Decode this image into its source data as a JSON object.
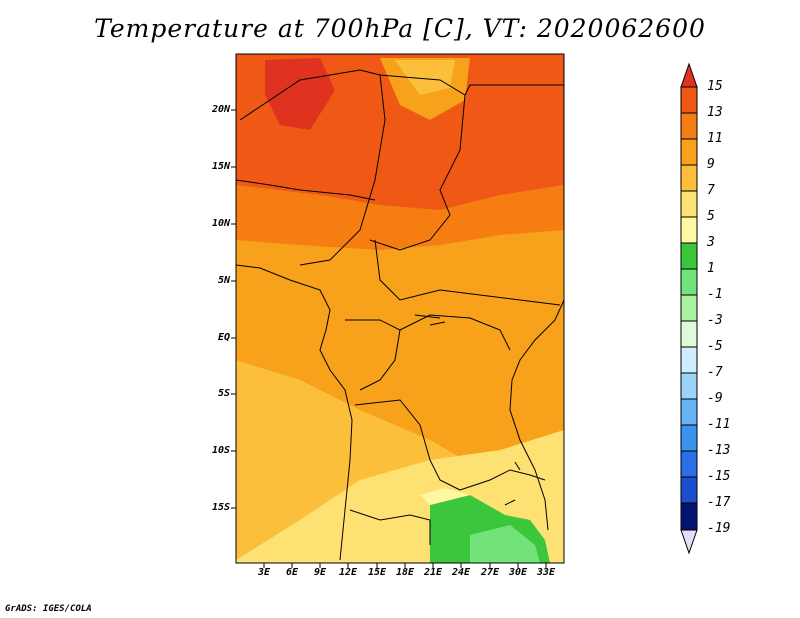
{
  "title": "Temperature at 700hPa [C], VT: 2020062600",
  "credit": "GrADS: IGES/COLA",
  "map": {
    "lat_labels": [
      "20N",
      "15N",
      "10N",
      "5N",
      "EQ",
      "5S",
      "10S",
      "15S"
    ],
    "lon_labels": [
      "3E",
      "6E",
      "9E",
      "12E",
      "15E",
      "18E",
      "21E",
      "24E",
      "27E",
      "30E",
      "33E"
    ]
  },
  "colorbar": {
    "labels": [
      "15",
      "13",
      "11",
      "9",
      "7",
      "5",
      "3",
      "1",
      "-1",
      "-3",
      "-5",
      "-7",
      "-9",
      "-11",
      "-13",
      "-15",
      "-17",
      "-19"
    ],
    "colors": [
      "#e0331f",
      "#f05816",
      "#f57d12",
      "#f8a11a",
      "#fbbf3c",
      "#fde173",
      "#fef8a2",
      "#3cc63c",
      "#72e37a",
      "#a9f2a2",
      "#ddfadb",
      "#cdeefe",
      "#9bd3fa",
      "#6ab3f5",
      "#3c92ef",
      "#2a6fe6",
      "#1b4fcf",
      "#0b2fa8",
      "#04136f",
      "#e4dcfa"
    ]
  },
  "chart_data": {
    "type": "heatmap",
    "title": "Temperature at 700hPa [C], VT: 2020062600",
    "variable": "Temperature at 700hPa",
    "units": "C",
    "valid_time": "2020062600",
    "x_ticks": [
      "3E",
      "6E",
      "9E",
      "12E",
      "15E",
      "18E",
      "21E",
      "24E",
      "27E",
      "30E",
      "33E"
    ],
    "y_ticks": [
      "20N",
      "15N",
      "10N",
      "5N",
      "EQ",
      "5S",
      "10S",
      "15S"
    ],
    "lon_range": [
      0,
      34
    ],
    "lat_range": [
      -20,
      25
    ],
    "contour_levels": [
      -19,
      -17,
      -15,
      -13,
      -11,
      -9,
      -7,
      -5,
      -3,
      -1,
      1,
      3,
      5,
      7,
      9,
      11,
      13,
      15
    ]
  }
}
